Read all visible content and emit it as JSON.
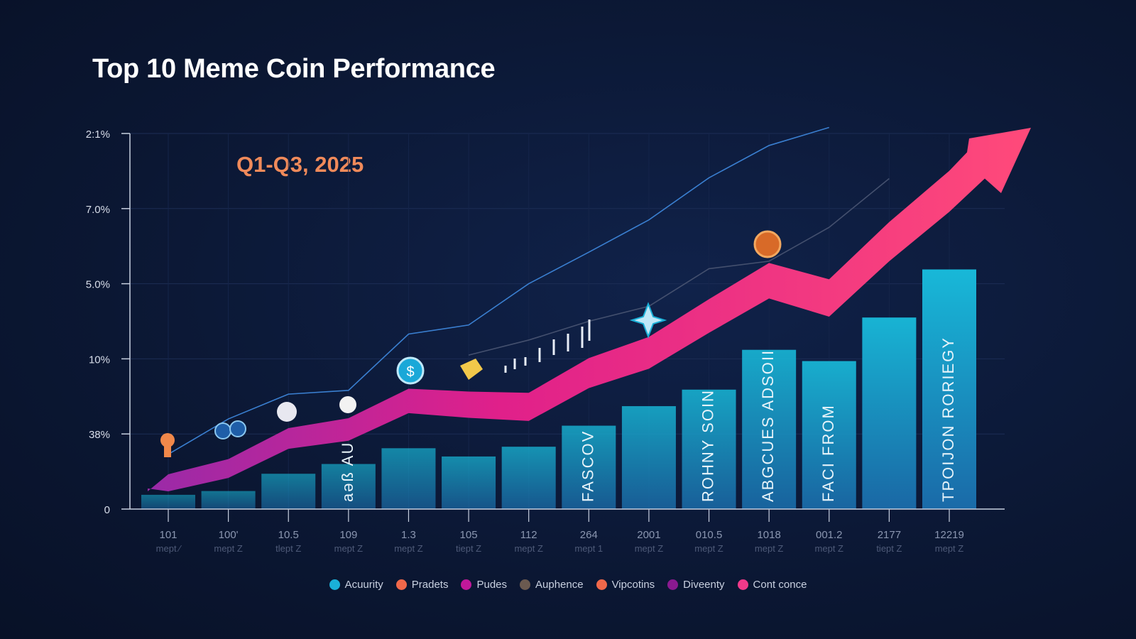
{
  "chart_data": {
    "type": "bar",
    "title": "Top 10 Meme Coin Performance",
    "subtitle": "Q1-Q3, 2025",
    "xlabel": "",
    "ylabel": "",
    "ylim": [
      0,
      5
    ],
    "y_ticks": [
      {
        "value": 0,
        "label": "0"
      },
      {
        "value": 1,
        "label": "38%"
      },
      {
        "value": 2,
        "label": "10%"
      },
      {
        "value": 3,
        "label": "5.0%"
      },
      {
        "value": 4,
        "label": "7.0%"
      },
      {
        "value": 5,
        "label": "2:1%"
      }
    ],
    "categories": [
      "101",
      "100'",
      "10.5",
      "109",
      "1.3",
      "105",
      "112",
      "264",
      "2001",
      "010.5",
      "1018",
      "001.2",
      "2177",
      "12219"
    ],
    "category_sublabels": [
      "mept ⁄",
      "mept Z",
      "tlept Z",
      "mept Z",
      "mept Z",
      "tiept Z",
      "mept Z",
      "mept 1",
      "mept Z",
      "mept Z",
      "mept Z",
      "mept Z",
      "tiept Z",
      "mept Z"
    ],
    "grid": true,
    "series": [
      {
        "name": "bars",
        "kind": "bar",
        "values": [
          0.19,
          0.24,
          0.47,
          0.6,
          0.81,
          0.7,
          0.83,
          1.11,
          1.37,
          1.59,
          2.12,
          1.97,
          2.55,
          3.19
        ]
      },
      {
        "name": "arrow",
        "kind": "arrow",
        "color": "#f5357f",
        "values": [
          0.35,
          0.54,
          0.94,
          1.06,
          1.44,
          1.39,
          1.36,
          1.81,
          2.08,
          2.57,
          3.04,
          2.81,
          3.56,
          4.23
        ]
      },
      {
        "name": "trend-upper",
        "kind": "line",
        "color": "#3a7fd0",
        "values": [
          0.73,
          1.2,
          1.53,
          1.58,
          2.33,
          2.45,
          3.0,
          3.42,
          3.85,
          4.41,
          4.84,
          5.08,
          null,
          null
        ]
      },
      {
        "name": "trend-lower",
        "kind": "line",
        "color": "#44506e",
        "values": [
          null,
          null,
          null,
          null,
          null,
          2.05,
          2.25,
          2.5,
          2.7,
          3.2,
          3.3,
          3.75,
          4.4,
          null
        ]
      }
    ],
    "bar_labels": [
      null,
      null,
      null,
      "aəß AU",
      null,
      null,
      null,
      "FASCOV",
      null,
      "ROHNY SOIN",
      "ABGCUES ADSOII",
      "FACI FROM",
      null,
      "TPOIJON RORIEGY"
    ],
    "legend": [
      {
        "label": "Acuurity",
        "color": "#1ab0d8"
      },
      {
        "label": "Pradets",
        "color": "#f0684a"
      },
      {
        "label": "Pudes",
        "color": "#c0189a"
      },
      {
        "label": "Auphence",
        "color": "#6b5a50"
      },
      {
        "label": "Vipcotins",
        "color": "#f0684a"
      },
      {
        "label": "Diveenty",
        "color": "#8a1a90"
      },
      {
        "label": "Cont conce",
        "color": "#f03a8a"
      }
    ],
    "legend_position": "bottom"
  }
}
